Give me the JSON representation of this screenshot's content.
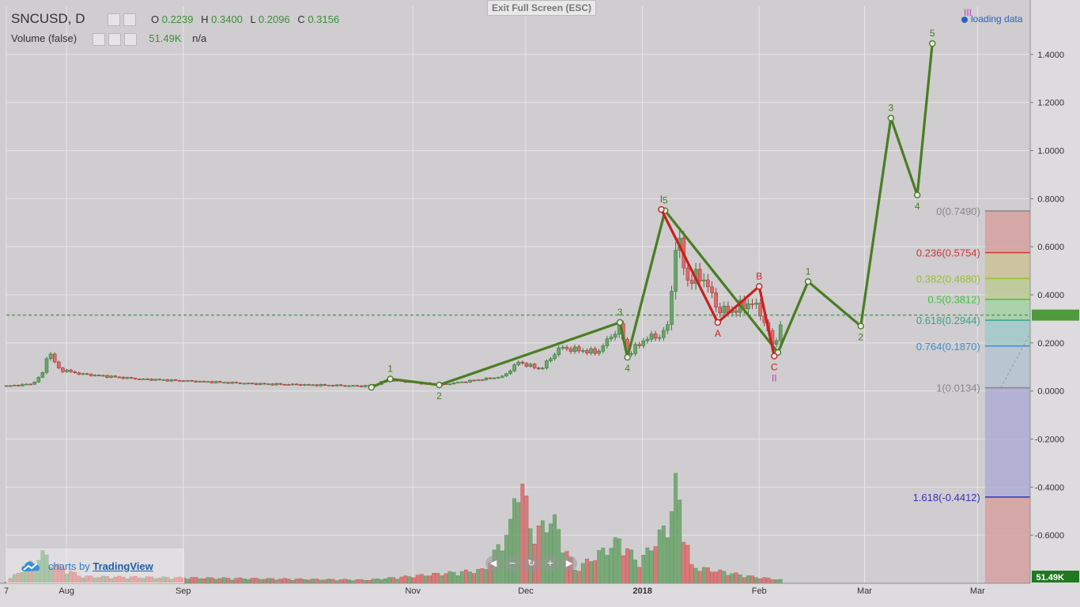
{
  "header": {
    "symbol": "SNCUSD, D",
    "ohlc": {
      "o_label": "O",
      "o": "0.2239",
      "h_label": "H",
      "h": "0.3400",
      "l_label": "L",
      "l": "0.2096",
      "c_label": "C",
      "c": "0.3156"
    },
    "volume_label": "Volume (false)",
    "volume_value": "51.49K",
    "volume_na": "n/a"
  },
  "exit_fullscreen": "Exit Full Screen (ESC)",
  "loading": "loading data",
  "logo": {
    "prefix": "charts by",
    "brand": "TradingView"
  },
  "colors": {
    "background": "#cfcdcf",
    "up": "#6aa56a",
    "down": "#e06a6a",
    "wave": "#4a7d23",
    "correction": "#cc1f1f",
    "last_price": "#5a9e5a"
  },
  "chart_data": {
    "type": "candlestick",
    "title": "SNCUSD, D",
    "ylim": [
      -0.8,
      1.6
    ],
    "y_ticks": [
      "1.4000",
      "1.2000",
      "1.0000",
      "0.8000",
      "0.6000",
      "0.4000",
      "0.2000",
      "0.0000",
      "-0.2000",
      "-0.4000",
      "-0.6000"
    ],
    "x_ticks": [
      {
        "label": "7",
        "date": "2017-07-16"
      },
      {
        "label": "Aug",
        "date": "2017-08-01"
      },
      {
        "label": "Sep",
        "date": "2017-09-01"
      },
      {
        "label": "Nov",
        "date": "2017-11-01"
      },
      {
        "label": "Dec",
        "date": "2017-12-01"
      },
      {
        "label": "2018",
        "date": "2018-01-01"
      },
      {
        "label": "Feb",
        "date": "2018-02-01"
      },
      {
        "label": "Mar",
        "date": "2018-03-01"
      },
      {
        "label": "Mar",
        "date": "2018-03-31"
      }
    ],
    "last_price": 0.3156,
    "last_volume_label": "51.49K",
    "price_segments": [
      {
        "date": "2017-07-16",
        "value": 0.02
      },
      {
        "date": "2017-07-23",
        "value": 0.03
      },
      {
        "date": "2017-07-26",
        "value": 0.08
      },
      {
        "date": "2017-07-27",
        "value": 0.17
      },
      {
        "date": "2017-07-30",
        "value": 0.09
      },
      {
        "date": "2017-08-05",
        "value": 0.07
      },
      {
        "date": "2017-08-20",
        "value": 0.05
      },
      {
        "date": "2017-09-20",
        "value": 0.03
      },
      {
        "date": "2017-10-20",
        "value": 0.02
      },
      {
        "date": "2017-10-26",
        "value": 0.045
      },
      {
        "date": "2017-11-08",
        "value": 0.025
      },
      {
        "date": "2017-11-25",
        "value": 0.06
      },
      {
        "date": "2017-11-29",
        "value": 0.12
      },
      {
        "date": "2017-12-05",
        "value": 0.09
      },
      {
        "date": "2017-12-10",
        "value": 0.18
      },
      {
        "date": "2017-12-20",
        "value": 0.16
      },
      {
        "date": "2017-12-26",
        "value": 0.27
      },
      {
        "date": "2017-12-28",
        "value": 0.15
      },
      {
        "date": "2018-01-02",
        "value": 0.22
      },
      {
        "date": "2018-01-06",
        "value": 0.23
      },
      {
        "date": "2018-01-08",
        "value": 0.28
      },
      {
        "date": "2018-01-10",
        "value": 0.65
      },
      {
        "date": "2018-01-13",
        "value": 0.46
      },
      {
        "date": "2018-01-17",
        "value": 0.48
      },
      {
        "date": "2018-01-21",
        "value": 0.34
      },
      {
        "date": "2018-01-24",
        "value": 0.33
      },
      {
        "date": "2018-01-30",
        "value": 0.37
      },
      {
        "date": "2018-02-02",
        "value": 0.31
      },
      {
        "date": "2018-02-05",
        "value": 0.17
      },
      {
        "date": "2018-02-07",
        "value": 0.31
      }
    ],
    "volume_segments": [
      {
        "date": "2017-07-16",
        "value": 0.5
      },
      {
        "date": "2017-07-26",
        "value": 9
      },
      {
        "date": "2017-07-28",
        "value": 6
      },
      {
        "date": "2017-08-05",
        "value": 2
      },
      {
        "date": "2017-10-20",
        "value": 1
      },
      {
        "date": "2017-11-20",
        "value": 4
      },
      {
        "date": "2017-11-27",
        "value": 17
      },
      {
        "date": "2017-11-29",
        "value": 34
      },
      {
        "date": "2017-12-03",
        "value": 14
      },
      {
        "date": "2017-12-08",
        "value": 20
      },
      {
        "date": "2017-12-14",
        "value": 4
      },
      {
        "date": "2017-12-26",
        "value": 13
      },
      {
        "date": "2017-12-31",
        "value": 6
      },
      {
        "date": "2018-01-08",
        "value": 18
      },
      {
        "date": "2018-01-10",
        "value": 30
      },
      {
        "date": "2018-01-14",
        "value": 5
      },
      {
        "date": "2018-01-30",
        "value": 2
      },
      {
        "date": "2018-02-07",
        "value": 1
      }
    ],
    "volume_ylim": [
      0,
      40
    ],
    "elliott_wave": [
      {
        "date": "2017-10-21",
        "value": 0.015,
        "label": ""
      },
      {
        "date": "2017-10-26",
        "value": 0.05,
        "label": "1"
      },
      {
        "date": "2017-11-08",
        "value": 0.025,
        "label": "2"
      },
      {
        "date": "2017-12-26",
        "value": 0.285,
        "label": "3"
      },
      {
        "date": "2017-12-28",
        "value": 0.14,
        "label": "4"
      },
      {
        "date": "2018-01-07",
        "value": 0.75,
        "label": "5"
      },
      {
        "date": "2018-02-06",
        "value": 0.16,
        "label": ""
      },
      {
        "date": "2018-02-14",
        "value": 0.455,
        "label": "1"
      },
      {
        "date": "2018-02-28",
        "value": 0.27,
        "label": "2"
      },
      {
        "date": "2018-03-08",
        "value": 1.135,
        "label": "3"
      },
      {
        "date": "2018-03-15",
        "value": 0.815,
        "label": "4"
      },
      {
        "date": "2018-03-19",
        "value": 1.445,
        "label": "5"
      }
    ],
    "correction_wave": [
      {
        "date": "2018-01-06",
        "value": 0.755,
        "label": "I"
      },
      {
        "date": "2018-01-21",
        "value": 0.285,
        "label": "A"
      },
      {
        "date": "2018-02-01",
        "value": 0.435,
        "label": "B"
      },
      {
        "date": "2018-02-05",
        "value": 0.145,
        "label": "C"
      }
    ],
    "correction_sublabel": "II",
    "top_label": "III",
    "fibonacci": [
      {
        "ratio": 0,
        "price": 0.749,
        "label": "0(0.7490)",
        "color": "#888888"
      },
      {
        "ratio": 0.236,
        "price": 0.5754,
        "label": "0.236(0.5754)",
        "color": "#d03434"
      },
      {
        "ratio": 0.382,
        "price": 0.468,
        "label": "0.382(0.4680)",
        "color": "#9bbf2c"
      },
      {
        "ratio": 0.5,
        "price": 0.3812,
        "label": "0.5(0.3812)",
        "color": "#3ec43e"
      },
      {
        "ratio": 0.618,
        "price": 0.2944,
        "label": "0.618(0.2944)",
        "color": "#35a685"
      },
      {
        "ratio": 0.764,
        "price": 0.187,
        "label": "0.764(0.1870)",
        "color": "#3f8ed2"
      },
      {
        "ratio": 1,
        "price": 0.0134,
        "label": "1(0.0134)",
        "color": "#888888"
      },
      {
        "ratio": 1.618,
        "price": -0.4412,
        "label": "1.618(-0.4412)",
        "color": "#3535b8"
      }
    ]
  }
}
